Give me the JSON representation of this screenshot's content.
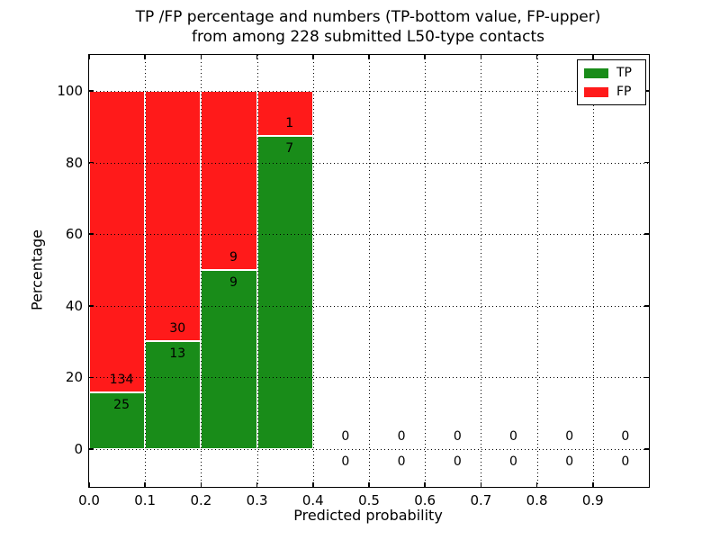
{
  "figure": {
    "title_line1": "TP /FP percentage and numbers (TP-bottom value, FP-upper)",
    "title_line2": "from among 228 submitted L50-type contacts"
  },
  "chart_data": {
    "type": "bar",
    "stacked": true,
    "normalized": "percent of bin total",
    "title": "TP /FP percentage and numbers (TP-bottom value, FP-upper) from among 228 submitted L50-type contacts",
    "total_submitted": 228,
    "xlabel": "Predicted probability",
    "ylabel": "Percentage",
    "xlim": [
      0.0,
      1.0
    ],
    "ylim": [
      -10.5,
      110.1
    ],
    "grid": "dotted, drawn over bars",
    "legend_position": "upper right",
    "bin_width": 0.1,
    "bin_starts": [
      0.0,
      0.1,
      0.2,
      0.3,
      0.4,
      0.5,
      0.6,
      0.7,
      0.8,
      0.9
    ],
    "x_ticks": [
      "0.0",
      "0.1",
      "0.2",
      "0.3",
      "0.4",
      "0.5",
      "0.6",
      "0.7",
      "0.8",
      "0.9"
    ],
    "x_tick_values": [
      0.0,
      0.1,
      0.2,
      0.3,
      0.4,
      0.5,
      0.6,
      0.7,
      0.8,
      0.9
    ],
    "y_ticks": [
      "0",
      "20",
      "40",
      "60",
      "80",
      "100"
    ],
    "y_tick_values": [
      0,
      20,
      40,
      60,
      80,
      100
    ],
    "series": [
      {
        "name": "TP",
        "color": "#198c19",
        "counts": [
          25,
          13,
          9,
          7,
          0,
          0,
          0,
          0,
          0,
          0
        ]
      },
      {
        "name": "FP",
        "color": "#ff1a1a",
        "counts": [
          134,
          30,
          9,
          1,
          0,
          0,
          0,
          0,
          0,
          0
        ]
      }
    ],
    "tp_percent_by_bin": [
      15.72,
      30.23,
      50.0,
      87.5,
      0,
      0,
      0,
      0,
      0,
      0
    ],
    "bar_label_note": "FP count printed above TP count at each stack boundary"
  }
}
